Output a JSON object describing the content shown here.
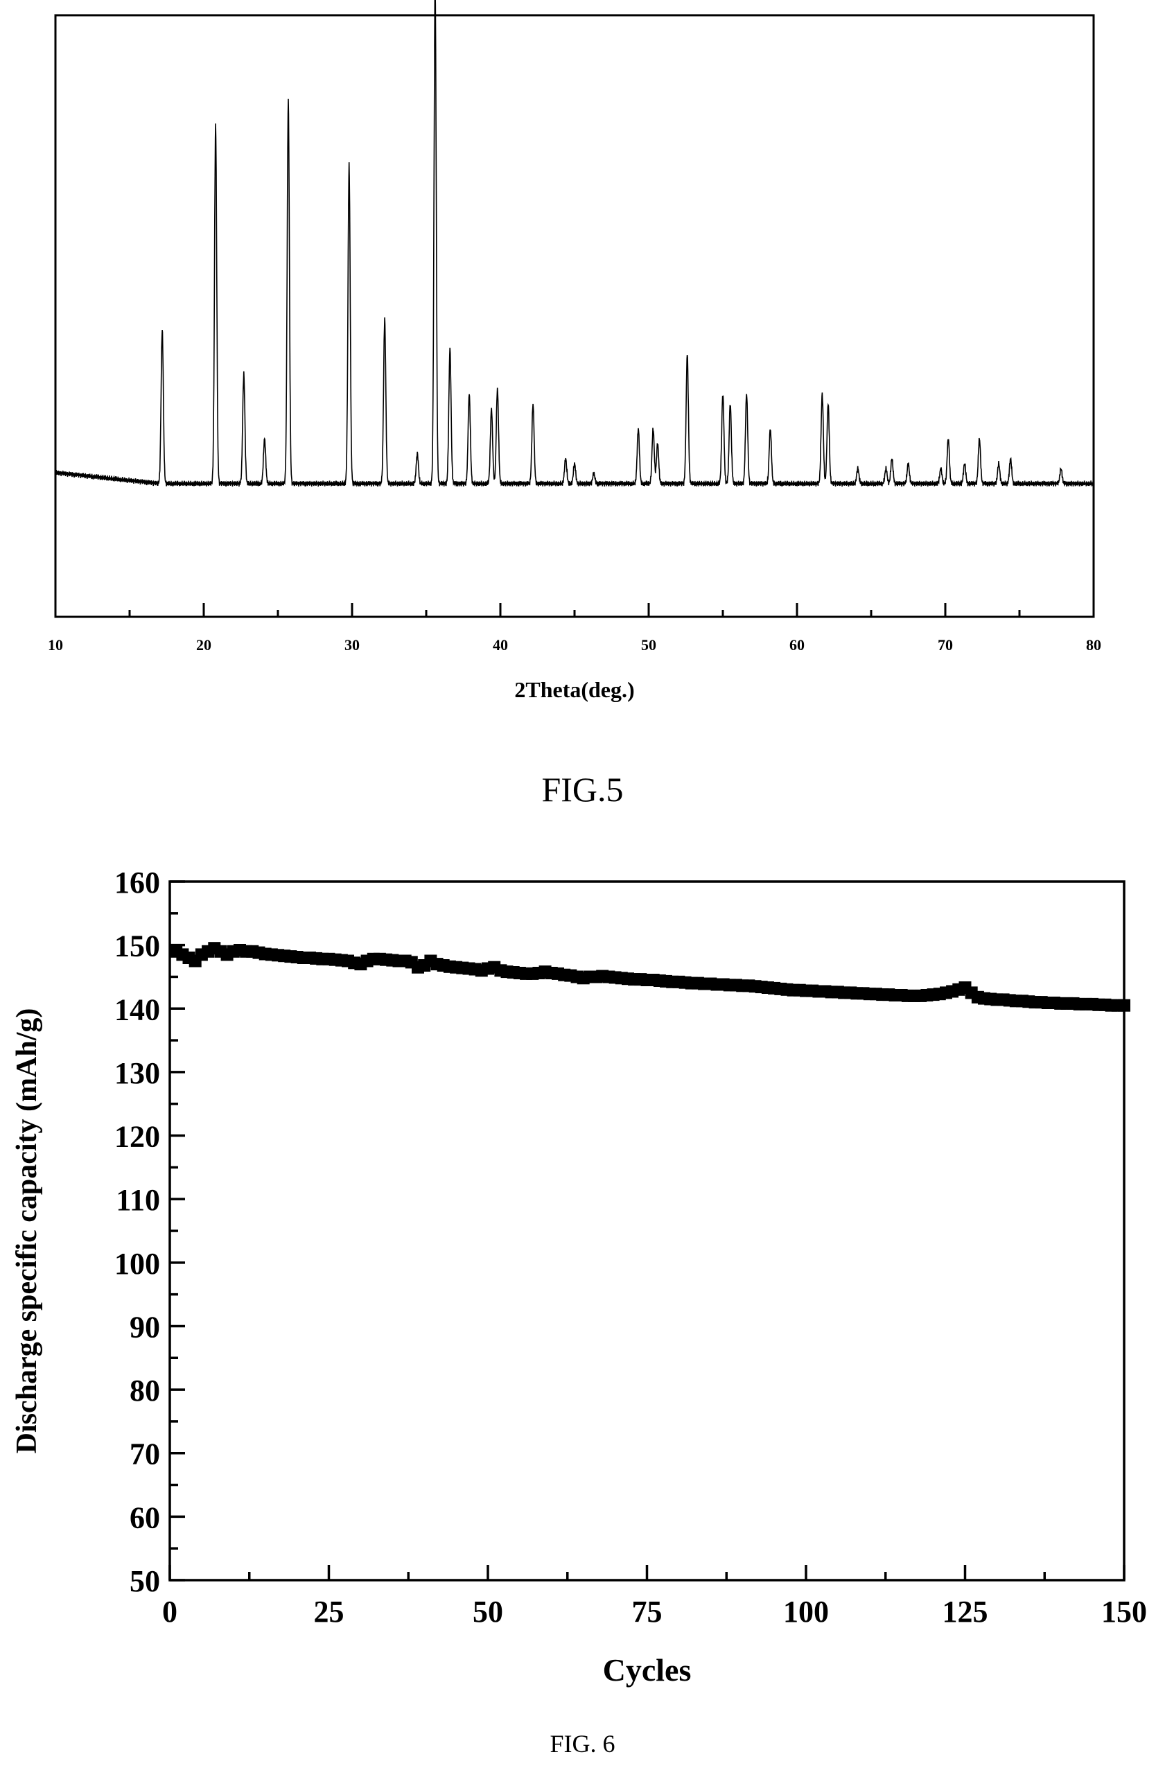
{
  "figures": [
    {
      "caption": "FIG.5",
      "chart_data": {
        "type": "line",
        "title": "",
        "xlabel": "2Theta(deg.)",
        "ylabel": "",
        "xlim": [
          10,
          80
        ],
        "xticks": [
          10,
          20,
          30,
          40,
          50,
          60,
          70,
          80
        ],
        "x_minor_ticks": [
          15,
          25,
          35,
          45,
          55,
          65,
          75
        ],
        "y_axis_labels": false,
        "grid": false,
        "legend": "none",
        "baseline": 0.07,
        "peaks": [
          {
            "x": 17.2,
            "h": 0.31
          },
          {
            "x": 20.8,
            "h": 0.72
          },
          {
            "x": 22.7,
            "h": 0.22
          },
          {
            "x": 24.1,
            "h": 0.09
          },
          {
            "x": 25.7,
            "h": 0.77
          },
          {
            "x": 29.8,
            "h": 0.64
          },
          {
            "x": 32.2,
            "h": 0.33
          },
          {
            "x": 34.4,
            "h": 0.06
          },
          {
            "x": 35.6,
            "h": 1.0
          },
          {
            "x": 36.6,
            "h": 0.27
          },
          {
            "x": 37.9,
            "h": 0.18
          },
          {
            "x": 39.4,
            "h": 0.15
          },
          {
            "x": 39.8,
            "h": 0.19
          },
          {
            "x": 42.2,
            "h": 0.16
          },
          {
            "x": 44.4,
            "h": 0.05
          },
          {
            "x": 45.0,
            "h": 0.04
          },
          {
            "x": 46.3,
            "h": 0.02
          },
          {
            "x": 49.3,
            "h": 0.11
          },
          {
            "x": 50.3,
            "h": 0.11
          },
          {
            "x": 50.6,
            "h": 0.08
          },
          {
            "x": 52.6,
            "h": 0.26
          },
          {
            "x": 55.0,
            "h": 0.18
          },
          {
            "x": 55.5,
            "h": 0.16
          },
          {
            "x": 56.6,
            "h": 0.18
          },
          {
            "x": 58.2,
            "h": 0.11
          },
          {
            "x": 61.7,
            "h": 0.18
          },
          {
            "x": 62.1,
            "h": 0.16
          },
          {
            "x": 64.1,
            "h": 0.03
          },
          {
            "x": 66.0,
            "h": 0.03
          },
          {
            "x": 66.4,
            "h": 0.05
          },
          {
            "x": 67.5,
            "h": 0.04
          },
          {
            "x": 69.7,
            "h": 0.03
          },
          {
            "x": 70.2,
            "h": 0.09
          },
          {
            "x": 71.3,
            "h": 0.04
          },
          {
            "x": 72.3,
            "h": 0.09
          },
          {
            "x": 73.6,
            "h": 0.04
          },
          {
            "x": 74.4,
            "h": 0.05
          },
          {
            "x": 77.8,
            "h": 0.03
          }
        ]
      }
    },
    {
      "caption": "FIG. 6",
      "chart_data": {
        "type": "scatter",
        "title": "",
        "xlabel": "Cycles",
        "ylabel": "Discharge specific capacity (mAh/g)",
        "xlim": [
          0,
          150
        ],
        "ylim": [
          50,
          160
        ],
        "xticks": [
          0,
          25,
          50,
          75,
          100,
          125,
          150
        ],
        "x_minor_ticks": [
          12.5,
          37.5,
          62.5,
          87.5,
          112.5,
          137.5
        ],
        "yticks": [
          50,
          60,
          70,
          80,
          90,
          100,
          110,
          120,
          130,
          140,
          150,
          160
        ],
        "y_minor_ticks": [
          55,
          65,
          75,
          85,
          95,
          105,
          115,
          125,
          135,
          145,
          155
        ],
        "grid": false,
        "legend": "none",
        "marker": "square",
        "series": [
          {
            "name": "",
            "x": [
              1,
              2,
              3,
              4,
              5,
              6,
              7,
              8,
              9,
              10,
              11,
              12,
              13,
              14,
              15,
              16,
              17,
              18,
              19,
              20,
              21,
              22,
              23,
              24,
              25,
              26,
              27,
              28,
              29,
              30,
              31,
              32,
              33,
              34,
              35,
              36,
              37,
              38,
              39,
              40,
              41,
              42,
              43,
              44,
              45,
              46,
              47,
              48,
              49,
              50,
              51,
              52,
              53,
              54,
              55,
              56,
              57,
              58,
              59,
              60,
              61,
              62,
              63,
              64,
              65,
              66,
              67,
              68,
              69,
              70,
              71,
              72,
              73,
              74,
              75,
              76,
              77,
              78,
              79,
              80,
              81,
              82,
              83,
              84,
              85,
              86,
              87,
              88,
              89,
              90,
              91,
              92,
              93,
              94,
              95,
              96,
              97,
              98,
              99,
              100,
              101,
              102,
              103,
              104,
              105,
              106,
              107,
              108,
              109,
              110,
              111,
              112,
              113,
              114,
              115,
              116,
              117,
              118,
              119,
              120,
              121,
              122,
              123,
              124,
              125,
              126,
              127,
              128,
              129,
              130,
              131,
              132,
              133,
              134,
              135,
              136,
              137,
              138,
              139,
              140,
              141,
              142,
              143,
              144,
              145,
              146,
              147,
              148,
              149,
              150
            ],
            "y": [
              149.0,
              148.5,
              148.0,
              147.5,
              148.5,
              149.0,
              149.5,
              149.0,
              148.5,
              149.0,
              149.2,
              149.0,
              149.0,
              148.8,
              148.6,
              148.5,
              148.4,
              148.3,
              148.2,
              148.1,
              148.0,
              148.0,
              147.9,
              147.8,
              147.8,
              147.7,
              147.6,
              147.5,
              147.2,
              147.0,
              147.5,
              147.8,
              147.8,
              147.7,
              147.6,
              147.5,
              147.5,
              147.3,
              146.5,
              146.8,
              147.5,
              147.0,
              146.8,
              146.6,
              146.5,
              146.4,
              146.3,
              146.2,
              146.0,
              146.3,
              146.5,
              146.0,
              145.8,
              145.7,
              145.6,
              145.5,
              145.5,
              145.6,
              145.8,
              145.6,
              145.5,
              145.3,
              145.2,
              145.0,
              144.8,
              145.0,
              145.0,
              145.1,
              145.0,
              144.9,
              144.8,
              144.7,
              144.6,
              144.6,
              144.5,
              144.5,
              144.4,
              144.3,
              144.2,
              144.2,
              144.1,
              144.0,
              144.0,
              143.9,
              143.9,
              143.8,
              143.8,
              143.7,
              143.7,
              143.6,
              143.6,
              143.5,
              143.4,
              143.3,
              143.2,
              143.1,
              143.0,
              142.9,
              142.9,
              142.8,
              142.8,
              142.7,
              142.7,
              142.6,
              142.6,
              142.5,
              142.5,
              142.4,
              142.4,
              142.3,
              142.3,
              142.2,
              142.2,
              142.1,
              142.1,
              142.0,
              142.0,
              142.0,
              142.1,
              142.2,
              142.3,
              142.5,
              142.7,
              143.0,
              143.3,
              142.5,
              141.8,
              141.6,
              141.5,
              141.4,
              141.4,
              141.3,
              141.2,
              141.2,
              141.1,
              141.0,
              141.0,
              140.9,
              140.9,
              140.8,
              140.8,
              140.8,
              140.7,
              140.7,
              140.7,
              140.6,
              140.6,
              140.5,
              140.5,
              140.5
            ]
          }
        ]
      }
    }
  ]
}
